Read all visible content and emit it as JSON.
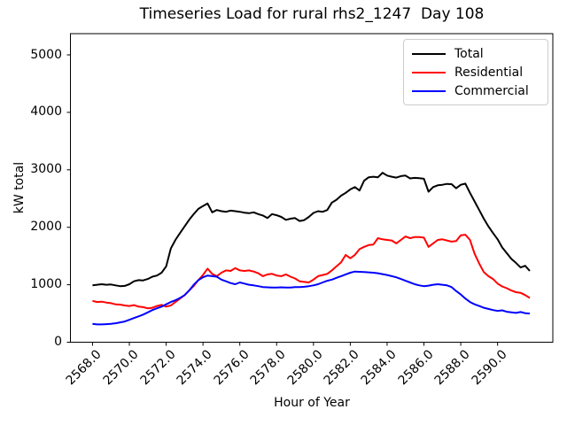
{
  "title": "Timeseries Load for rural rhs2_1247  Day 108",
  "chart_data": {
    "type": "line",
    "title": "Timeseries Load for rural rhs2_1247  Day 108",
    "xlabel": "Hour of Year",
    "ylabel": "kW total",
    "grid": false,
    "legend_position": "upper right",
    "xlim": [
      2566.8,
      2593.0
    ],
    "ylim": [
      0,
      5370
    ],
    "xticks": [
      2568,
      2570,
      2572,
      2574,
      2576,
      2578,
      2580,
      2582,
      2584,
      2586,
      2588,
      2590
    ],
    "xtick_labels": [
      "2568.0",
      "2570.0",
      "2572.0",
      "2574.0",
      "2576.0",
      "2578.0",
      "2580.0",
      "2582.0",
      "2584.0",
      "2586.0",
      "2588.0",
      "2590.0"
    ],
    "yticks": [
      0,
      1000,
      2000,
      3000,
      4000,
      5000
    ],
    "ytick_labels": [
      "0",
      "1000",
      "2000",
      "3000",
      "4000",
      "5000"
    ],
    "x_start": 2568.0,
    "x_step": 0.25,
    "n_points": 96,
    "series": [
      {
        "name": "Total",
        "color": "#000000",
        "values": [
          990,
          1000,
          1010,
          1000,
          1005,
          990,
          975,
          980,
          1010,
          1060,
          1080,
          1075,
          1100,
          1140,
          1160,
          1210,
          1320,
          1630,
          1780,
          1900,
          2015,
          2130,
          2230,
          2320,
          2370,
          2415,
          2260,
          2300,
          2280,
          2270,
          2290,
          2280,
          2270,
          2255,
          2245,
          2260,
          2230,
          2205,
          2160,
          2230,
          2210,
          2180,
          2130,
          2150,
          2160,
          2110,
          2125,
          2180,
          2250,
          2280,
          2270,
          2300,
          2430,
          2480,
          2550,
          2600,
          2660,
          2700,
          2640,
          2810,
          2870,
          2880,
          2870,
          2950,
          2900,
          2880,
          2865,
          2890,
          2900,
          2850,
          2860,
          2855,
          2845,
          2620,
          2700,
          2730,
          2740,
          2755,
          2750,
          2680,
          2740,
          2760,
          2600,
          2450,
          2300,
          2150,
          2015,
          1900,
          1790,
          1650,
          1550,
          1450,
          1380,
          1300,
          1330,
          1240
        ]
      },
      {
        "name": "Residential",
        "color": "#ff0000",
        "values": [
          720,
          700,
          705,
          690,
          680,
          660,
          655,
          640,
          630,
          645,
          620,
          610,
          590,
          600,
          630,
          650,
          620,
          640,
          700,
          760,
          820,
          900,
          980,
          1080,
          1170,
          1280,
          1190,
          1150,
          1210,
          1250,
          1240,
          1290,
          1250,
          1240,
          1250,
          1230,
          1200,
          1150,
          1180,
          1190,
          1160,
          1150,
          1180,
          1140,
          1110,
          1060,
          1050,
          1040,
          1090,
          1150,
          1170,
          1190,
          1250,
          1320,
          1390,
          1520,
          1460,
          1520,
          1620,
          1660,
          1690,
          1700,
          1810,
          1790,
          1780,
          1770,
          1720,
          1780,
          1840,
          1810,
          1830,
          1830,
          1820,
          1660,
          1720,
          1780,
          1790,
          1770,
          1750,
          1760,
          1860,
          1870,
          1780,
          1540,
          1370,
          1220,
          1150,
          1100,
          1020,
          970,
          940,
          900,
          870,
          860,
          820,
          770
        ]
      },
      {
        "name": "Commercial",
        "color": "#0000ff",
        "values": [
          320,
          310,
          310,
          315,
          320,
          330,
          345,
          360,
          390,
          420,
          450,
          480,
          520,
          560,
          590,
          620,
          660,
          700,
          730,
          770,
          820,
          900,
          1000,
          1080,
          1130,
          1160,
          1150,
          1140,
          1090,
          1060,
          1030,
          1010,
          1040,
          1020,
          1000,
          990,
          975,
          960,
          955,
          950,
          950,
          955,
          950,
          950,
          960,
          960,
          965,
          975,
          990,
          1010,
          1040,
          1070,
          1090,
          1120,
          1150,
          1180,
          1210,
          1230,
          1225,
          1220,
          1215,
          1210,
          1200,
          1185,
          1170,
          1150,
          1130,
          1100,
          1070,
          1040,
          1010,
          990,
          975,
          985,
          1000,
          1010,
          1000,
          990,
          960,
          890,
          830,
          760,
          700,
          660,
          630,
          600,
          580,
          560,
          545,
          555,
          530,
          520,
          510,
          525,
          505,
          500
        ]
      }
    ],
    "colors": {
      "axes": "#000000",
      "legend_border": "#cccccc",
      "background": "#ffffff"
    }
  }
}
